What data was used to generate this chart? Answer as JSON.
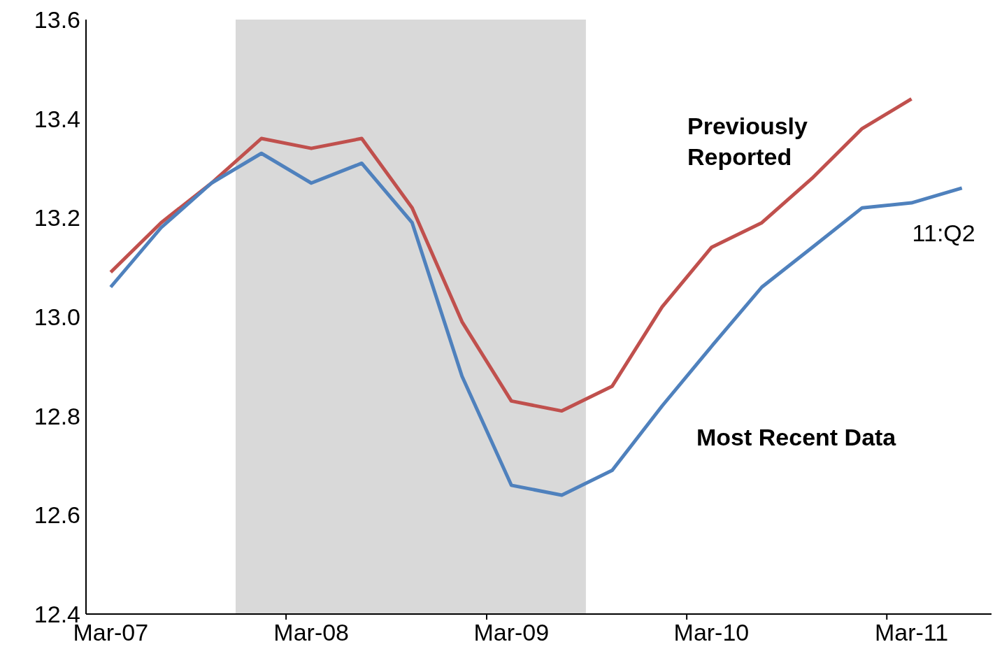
{
  "chart_data": {
    "type": "line",
    "x": [
      "2007-03",
      "2007-06",
      "2007-09",
      "2007-12",
      "2008-03",
      "2008-06",
      "2008-09",
      "2008-12",
      "2009-03",
      "2009-06",
      "2009-09",
      "2009-12",
      "2010-03",
      "2010-06",
      "2010-09",
      "2010-12",
      "2011-03",
      "2011-06"
    ],
    "series": [
      {
        "name": "Previously Reported",
        "color": "#c0504d",
        "values": [
          13.09,
          13.19,
          13.27,
          13.36,
          13.34,
          13.36,
          13.22,
          12.99,
          12.83,
          12.81,
          12.86,
          13.02,
          13.14,
          13.19,
          13.28,
          13.38,
          13.44,
          null
        ]
      },
      {
        "name": "Most Recent Data",
        "color": "#4f81bd",
        "values": [
          13.06,
          13.18,
          13.27,
          13.33,
          13.27,
          13.31,
          13.19,
          12.88,
          12.66,
          12.64,
          12.69,
          12.82,
          12.94,
          13.06,
          13.14,
          13.22,
          13.23,
          13.26
        ]
      }
    ],
    "xlim": [
      "2007-01-15",
      "2011-07-25"
    ],
    "xticks": [
      {
        "value": "2007-03",
        "label": "Mar-07"
      },
      {
        "value": "2008-01-15",
        "label": null
      },
      {
        "value": "2008-03",
        "label": "Mar-08"
      },
      {
        "value": "2009-01-15",
        "label": null
      },
      {
        "value": "2009-03",
        "label": "Mar-09"
      },
      {
        "value": "2010-01-15",
        "label": null
      },
      {
        "value": "2010-03",
        "label": "Mar-10"
      },
      {
        "value": "2011-01-15",
        "label": null
      },
      {
        "value": "2011-03",
        "label": "Mar-11"
      }
    ],
    "ylim": [
      12.4,
      13.6
    ],
    "yticks": [
      {
        "value": 12.4,
        "label": "12.4"
      },
      {
        "value": 12.6,
        "label": "12.6"
      },
      {
        "value": 12.8,
        "label": "12.8"
      },
      {
        "value": 13.0,
        "label": "13.0"
      },
      {
        "value": 13.2,
        "label": "13.2"
      },
      {
        "value": 13.4,
        "label": "13.4"
      },
      {
        "value": 13.6,
        "label": "13.6"
      }
    ],
    "bands": [
      {
        "axis": "x",
        "from": "2007-10-15",
        "to": "2009-07-15",
        "color": "#d9d9d9"
      }
    ],
    "annotations": [
      {
        "text": "11:Q2",
        "x": "2011-06",
        "y": 13.26
      }
    ],
    "grid": false,
    "legend": false,
    "marker": "none",
    "line_style": "solid"
  }
}
